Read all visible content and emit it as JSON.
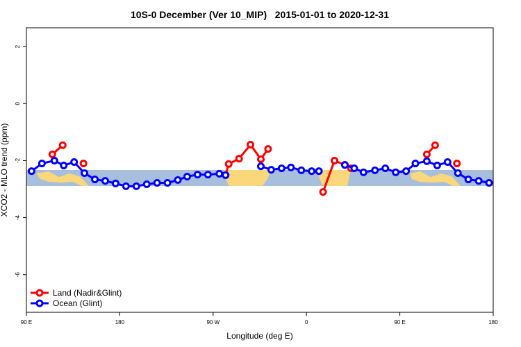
{
  "chart_data": {
    "type": "line",
    "title": "10S-0 December (Ver 10_MIP)   2015-01-01 to 2020-12-31",
    "xlabel": "Longitude (deg E)",
    "ylabel": "XCO2 - MLO trend (ppm)",
    "xlim": [
      90,
      540
    ],
    "ylim": [
      -7.32,
      2.66
    ],
    "xticks": [
      {
        "value": 90,
        "label": "90 E"
      },
      180,
      {
        "value": 270,
        "label": "90 W"
      },
      {
        "value": 360,
        "label": "0"
      },
      {
        "value": 450,
        "label": "90 E"
      },
      {
        "value": 540,
        "label": "180"
      }
    ],
    "yticks": [
      -6,
      -4,
      -2,
      0,
      2
    ],
    "legend": "bottom-left",
    "series": [
      {
        "name": "Land (Nadir&Glint)",
        "color": "#ff0000",
        "x": [
          115,
          125,
          null,
          145,
          null,
          282,
          285,
          295,
          306,
          316,
          323,
          null,
          376,
          387,
          397,
          403,
          null,
          476,
          484,
          null,
          505
        ],
        "values": [
          -1.78,
          -1.46,
          null,
          -2.1,
          null,
          -2.51,
          -2.12,
          -1.93,
          -1.44,
          -1.95,
          -1.59,
          null,
          -3.1,
          -2.0,
          -2.15,
          -2.27,
          null,
          -1.78,
          -1.46,
          null,
          -2.1
        ]
      },
      {
        "name": "Ocean (Glint)",
        "color": "#0000ff",
        "x": [
          95,
          105,
          117,
          126,
          136,
          146,
          156,
          166,
          176,
          186,
          196,
          206,
          216,
          226,
          236,
          245,
          255,
          265,
          276,
          282,
          null,
          316,
          326,
          336,
          345,
          355,
          365,
          372,
          null,
          397,
          406,
          415,
          426,
          436,
          446,
          456,
          465,
          476,
          486,
          496,
          506,
          516,
          526,
          536
        ],
        "values": [
          -2.37,
          -2.1,
          -2.0,
          -2.17,
          -2.05,
          -2.44,
          -2.66,
          -2.71,
          -2.8,
          -2.9,
          -2.9,
          -2.83,
          -2.78,
          -2.78,
          -2.68,
          -2.56,
          -2.49,
          -2.49,
          -2.46,
          -2.51,
          null,
          -2.2,
          -2.32,
          -2.27,
          -2.24,
          -2.34,
          -2.37,
          -2.37,
          null,
          -2.15,
          -2.27,
          -2.41,
          -2.34,
          -2.27,
          -2.41,
          -2.37,
          -2.1,
          -2.02,
          -2.17,
          -2.05,
          -2.44,
          -2.66,
          -2.71,
          -2.78
        ]
      }
    ]
  }
}
